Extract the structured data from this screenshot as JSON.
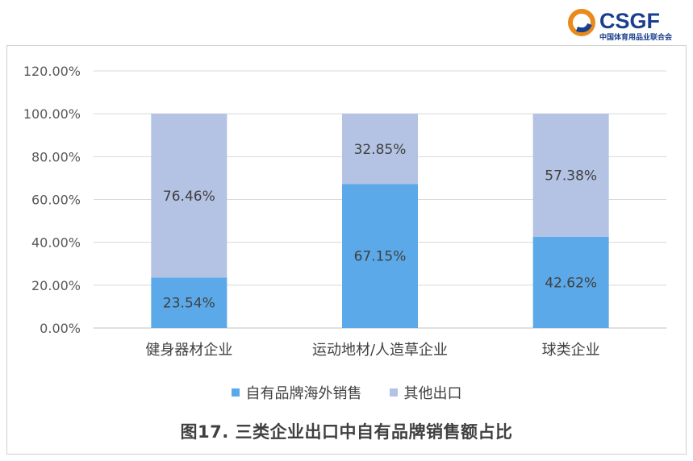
{
  "logo": {
    "brand_text": "CSGF",
    "subtitle": "中国体育用品业联合会"
  },
  "caption": "图17. 三类企业出口中自有品牌销售额占比",
  "colors": {
    "own_brand": "#5ba9e8",
    "other_export": "#b4c2e3",
    "grid": "#d9d9d9",
    "axis_text": "#595959",
    "logo_orange": "#e98a1b",
    "logo_blue": "#1a3f8f"
  },
  "chart_data": {
    "type": "bar",
    "stacked": true,
    "title": "",
    "xlabel": "",
    "ylabel": "",
    "categories": [
      "健身器材企业",
      "运动地材/人造草企业",
      "球类企业"
    ],
    "series": [
      {
        "name": "自有品牌海外销售",
        "values": [
          23.54,
          67.15,
          42.62
        ],
        "labels": [
          "23.54%",
          "67.15%",
          "42.62%"
        ]
      },
      {
        "name": "其他出口",
        "values": [
          76.46,
          32.85,
          57.38
        ],
        "labels": [
          "76.46%",
          "32.85%",
          "57.38%"
        ]
      }
    ],
    "ylim": [
      0,
      120
    ],
    "yticks": [
      "0.00%",
      "20.00%",
      "40.00%",
      "60.00%",
      "80.00%",
      "100.00%",
      "120.00%"
    ],
    "grid": true,
    "legend_position": "bottom"
  }
}
